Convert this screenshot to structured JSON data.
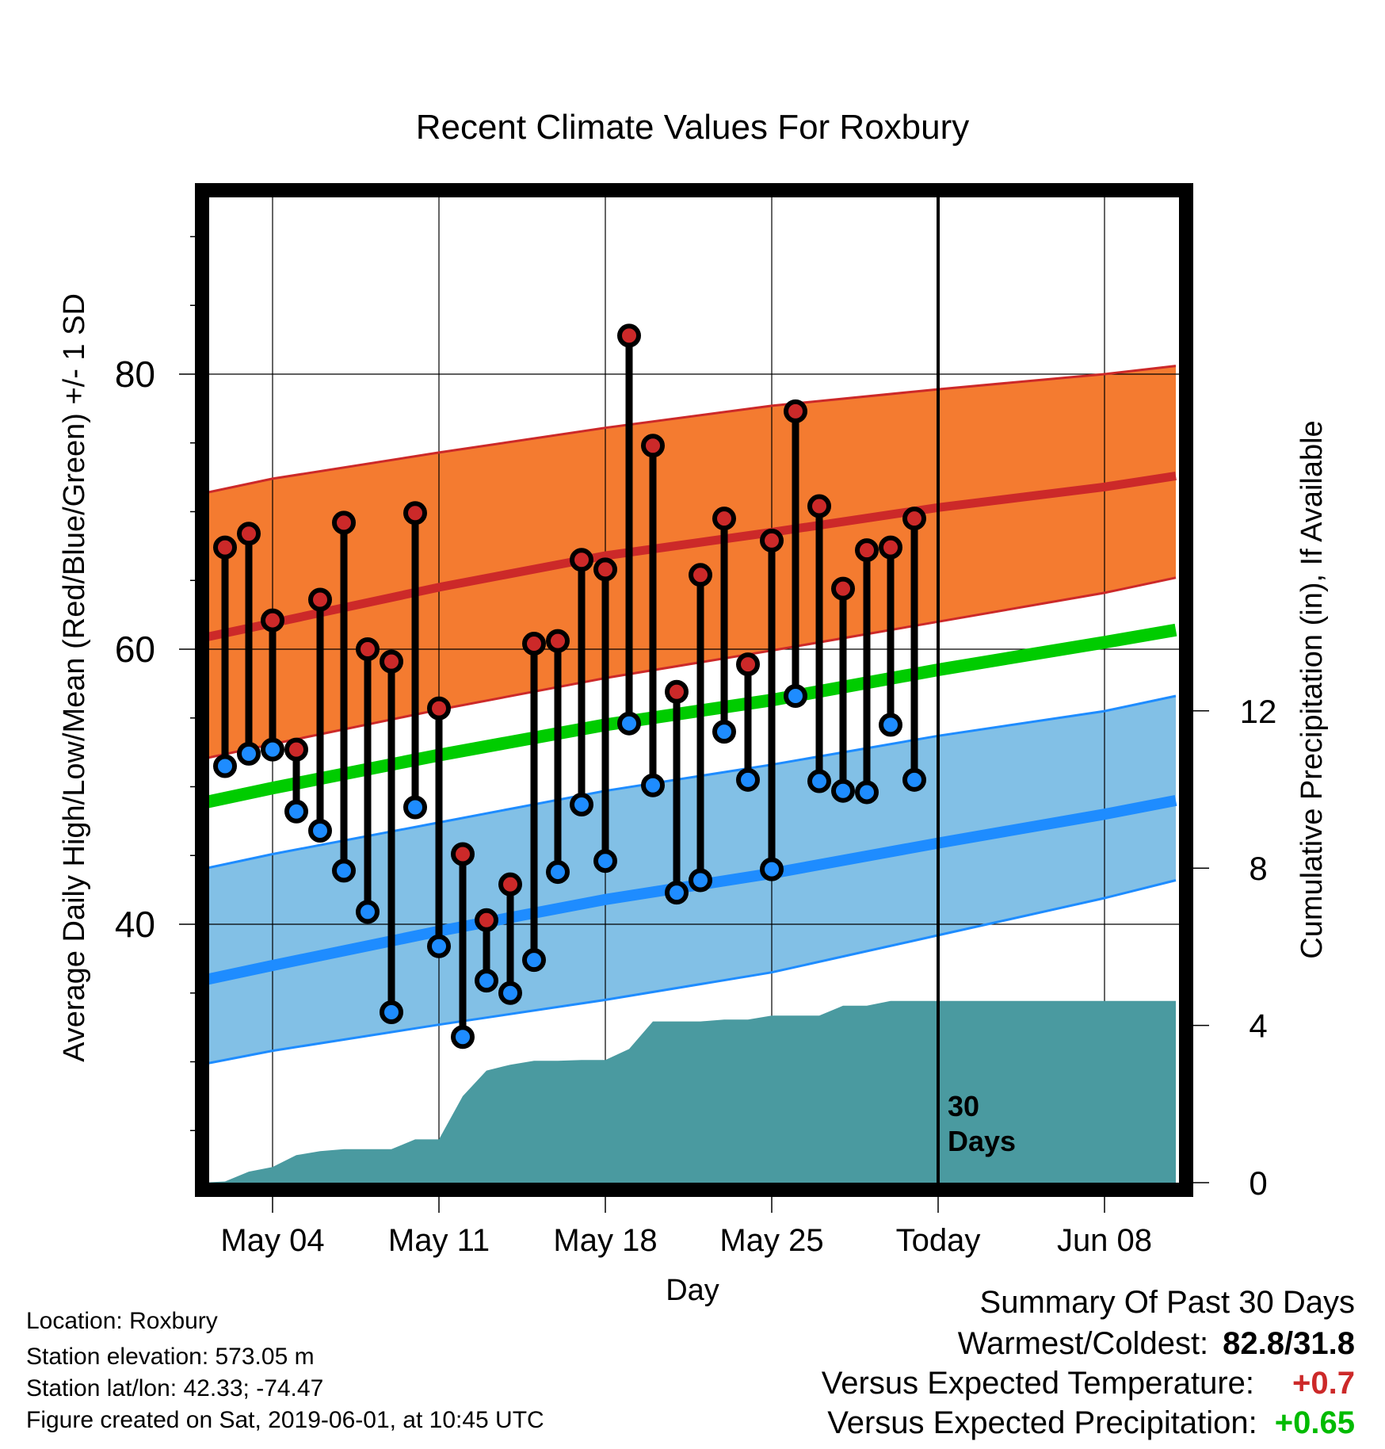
{
  "chart_data": {
    "type": "line",
    "title": "Recent Climate Values For Roxbury",
    "xlabel": "Day",
    "ylabel": "Average Daily High/Low/Mean (Red/Blue/Green) +/- 1 SD",
    "y2label": "Cumulative Precipitation (in), If Available",
    "ylim": [
      22,
      95
    ],
    "y2lim": [
      0,
      25
    ],
    "yticks": [
      40,
      60,
      80
    ],
    "y2ticks": [
      0,
      4,
      8,
      12
    ],
    "x_range": [
      "2019-05-01",
      "2019-06-11"
    ],
    "xtick_dates": [
      "2019-05-04",
      "2019-05-11",
      "2019-05-18",
      "2019-05-25",
      "2019-06-01",
      "2019-06-08"
    ],
    "xtick_labels": [
      "May 04",
      "May 11",
      "May 18",
      "May 25",
      "Today",
      "Jun 08"
    ],
    "today": "2019-06-01",
    "today_label": [
      "30",
      "Days"
    ],
    "grid": true,
    "colors": {
      "high": "#cc2929",
      "high_band": "#f47b30",
      "low": "#1e8cff",
      "low_band": "#82c0e6",
      "mean": "#00cc00",
      "precip": "#4a9aa0",
      "point_high": "#cc2929",
      "point_low": "#1e8cff"
    },
    "normals": {
      "dates": [
        "2019-05-01",
        "2019-05-04",
        "2019-05-11",
        "2019-05-18",
        "2019-05-25",
        "2019-06-01",
        "2019-06-08",
        "2019-06-11"
      ],
      "high_mean": [
        60.8,
        61.9,
        64.5,
        66.8,
        68.5,
        70.3,
        71.8,
        72.6
      ],
      "high_upper": [
        71.3,
        72.4,
        74.3,
        76.1,
        77.7,
        78.9,
        80.0,
        80.6
      ],
      "high_lower": [
        52.0,
        53.1,
        55.6,
        57.9,
        59.9,
        62.0,
        64.1,
        65.2
      ],
      "low_mean": [
        35.9,
        37.0,
        39.5,
        41.8,
        43.7,
        45.9,
        48.0,
        49.0
      ],
      "low_upper": [
        44.0,
        45.1,
        47.4,
        49.7,
        51.6,
        53.7,
        55.5,
        56.6
      ],
      "low_lower": [
        29.8,
        30.8,
        32.7,
        34.5,
        36.5,
        39.2,
        41.9,
        43.2
      ],
      "daily_mean": [
        48.8,
        49.9,
        52.3,
        54.5,
        56.3,
        58.5,
        60.5,
        61.4
      ]
    },
    "series": [
      {
        "name": "High",
        "dates": [
          "2019-05-02",
          "2019-05-03",
          "2019-05-04",
          "2019-05-05",
          "2019-05-06",
          "2019-05-07",
          "2019-05-08",
          "2019-05-09",
          "2019-05-10",
          "2019-05-11",
          "2019-05-12",
          "2019-05-13",
          "2019-05-14",
          "2019-05-15",
          "2019-05-16",
          "2019-05-17",
          "2019-05-18",
          "2019-05-19",
          "2019-05-20",
          "2019-05-21",
          "2019-05-22",
          "2019-05-23",
          "2019-05-24",
          "2019-05-25",
          "2019-05-26",
          "2019-05-27",
          "2019-05-28",
          "2019-05-29",
          "2019-05-30",
          "2019-05-31"
        ],
        "values": [
          67.4,
          68.4,
          62.1,
          52.7,
          63.6,
          69.2,
          60.0,
          59.1,
          69.9,
          55.7,
          45.1,
          40.3,
          42.9,
          60.4,
          60.6,
          66.5,
          65.8,
          82.8,
          74.8,
          56.9,
          65.4,
          69.5,
          58.9,
          67.9,
          77.3,
          70.4,
          64.4,
          67.2,
          67.4,
          69.5
        ]
      },
      {
        "name": "Low",
        "dates": [
          "2019-05-02",
          "2019-05-03",
          "2019-05-04",
          "2019-05-05",
          "2019-05-06",
          "2019-05-07",
          "2019-05-08",
          "2019-05-09",
          "2019-05-10",
          "2019-05-11",
          "2019-05-12",
          "2019-05-13",
          "2019-05-14",
          "2019-05-15",
          "2019-05-16",
          "2019-05-17",
          "2019-05-18",
          "2019-05-19",
          "2019-05-20",
          "2019-05-21",
          "2019-05-22",
          "2019-05-23",
          "2019-05-24",
          "2019-05-25",
          "2019-05-26",
          "2019-05-27",
          "2019-05-28",
          "2019-05-29",
          "2019-05-30",
          "2019-05-31"
        ],
        "values": [
          51.5,
          52.4,
          52.7,
          48.2,
          46.8,
          43.9,
          40.9,
          33.6,
          48.5,
          38.4,
          31.8,
          35.9,
          35.0,
          37.4,
          43.8,
          48.7,
          44.6,
          54.6,
          50.1,
          42.3,
          43.2,
          54.0,
          50.5,
          44.0,
          56.6,
          50.4,
          49.7,
          49.6,
          54.5,
          50.5
        ]
      },
      {
        "name": "Cumulative Precipitation",
        "axis": "right",
        "dates": [
          "2019-05-01",
          "2019-05-02",
          "2019-05-03",
          "2019-05-04",
          "2019-05-05",
          "2019-05-06",
          "2019-05-07",
          "2019-05-08",
          "2019-05-09",
          "2019-05-10",
          "2019-05-11",
          "2019-05-12",
          "2019-05-13",
          "2019-05-14",
          "2019-05-15",
          "2019-05-16",
          "2019-05-17",
          "2019-05-18",
          "2019-05-19",
          "2019-05-20",
          "2019-05-21",
          "2019-05-22",
          "2019-05-23",
          "2019-05-24",
          "2019-05-25",
          "2019-05-26",
          "2019-05-27",
          "2019-05-28",
          "2019-05-29",
          "2019-05-30",
          "2019-05-31",
          "2019-06-11"
        ],
        "values": [
          0,
          0.03,
          0.28,
          0.4,
          0.7,
          0.8,
          0.85,
          0.85,
          0.85,
          1.1,
          1.1,
          2.2,
          2.85,
          3.0,
          3.1,
          3.1,
          3.12,
          3.12,
          3.4,
          4.1,
          4.1,
          4.1,
          4.15,
          4.15,
          4.25,
          4.25,
          4.25,
          4.5,
          4.5,
          4.62,
          4.62,
          4.62
        ]
      }
    ]
  },
  "footer": {
    "location": "Location: Roxbury",
    "elevation": "Station elevation: 573.05 m",
    "latlon": "Station lat/lon: 42.33; -74.47",
    "created": "Figure created on Sat, 2019-06-01, at 10:45 UTC"
  },
  "summary": {
    "title": "Summary Of Past 30 Days",
    "warmest_coldest_label": "Warmest/Coldest:",
    "warmest_coldest_value": "82.8/31.8",
    "temp_label": "Versus Expected Temperature:",
    "temp_value": "+0.7",
    "temp_color": "#cc2929",
    "precip_label": "Versus Expected Precipitation:",
    "precip_value": "+0.65",
    "precip_color": "#00bb00"
  }
}
